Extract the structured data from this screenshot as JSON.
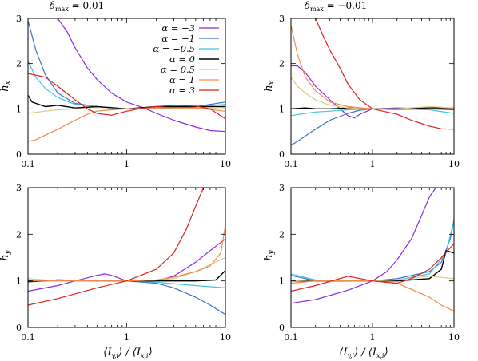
{
  "figure": {
    "xlabel": "⟨I_y,i⟩ / ⟨I_x,i⟩",
    "xticks": [
      "0.1",
      "1",
      "10"
    ],
    "series_names": [
      "α = −3",
      "α = −1",
      "α = −0.5",
      "α = 0",
      "α = 0.5",
      "α = 1",
      "α = 3"
    ],
    "series_colors": [
      "#8a2be2",
      "#3a6fd8",
      "#3ec6e0",
      "#000000",
      "#d8c98a",
      "#f08a50",
      "#e0201c"
    ]
  },
  "chart_data": [
    {
      "type": "line",
      "title": "δmax = 0.01",
      "xlabel": "",
      "ylabel": "hx",
      "x_scale": "log",
      "xlim": [
        0.1,
        10
      ],
      "ylim": [
        0,
        3
      ],
      "yticks": [
        "0",
        "1",
        "2",
        "3"
      ],
      "legend": "top-right",
      "series": [
        {
          "name": "α = −3",
          "x": [
            0.2,
            0.25,
            0.3,
            0.4,
            0.5,
            0.7,
            1,
            1.5,
            2,
            3,
            5,
            7,
            10
          ],
          "y": [
            3.0,
            2.7,
            2.35,
            1.9,
            1.65,
            1.35,
            1.15,
            1.02,
            0.9,
            0.75,
            0.6,
            0.52,
            0.5
          ]
        },
        {
          "name": "α = −1",
          "x": [
            0.1,
            0.12,
            0.15,
            0.2,
            0.3,
            0.5,
            1,
            2,
            5,
            10
          ],
          "y": [
            2.95,
            2.3,
            1.75,
            1.35,
            1.12,
            1.05,
            1.0,
            1.0,
            1.05,
            1.15
          ]
        },
        {
          "name": "α = −0.5",
          "x": [
            0.1,
            0.12,
            0.15,
            0.2,
            0.3,
            0.5,
            1,
            2,
            5,
            10
          ],
          "y": [
            2.05,
            1.7,
            1.45,
            1.25,
            1.1,
            1.05,
            1.0,
            1.02,
            1.05,
            1.1
          ]
        },
        {
          "name": "α = 0",
          "x": [
            0.1,
            0.11,
            0.15,
            0.2,
            0.3,
            0.5,
            1,
            2,
            5,
            10
          ],
          "y": [
            1.3,
            1.15,
            1.05,
            1.08,
            1.02,
            1.05,
            1.0,
            1.05,
            1.05,
            1.05
          ]
        },
        {
          "name": "α = 0.5",
          "x": [
            0.1,
            0.15,
            0.2,
            0.3,
            0.5,
            1,
            2,
            5,
            10
          ],
          "y": [
            0.9,
            0.95,
            0.98,
            1.0,
            1.0,
            1.0,
            1.02,
            1.02,
            1.0
          ]
        },
        {
          "name": "α = 1",
          "x": [
            0.1,
            0.12,
            0.15,
            0.2,
            0.3,
            0.4,
            0.5,
            0.7,
            1,
            2,
            5,
            10
          ],
          "y": [
            0.28,
            0.32,
            0.42,
            0.55,
            0.75,
            0.88,
            0.95,
            0.98,
            1.0,
            1.02,
            1.02,
            0.95
          ]
        },
        {
          "name": "α = 3",
          "x": [
            0.1,
            0.15,
            0.2,
            0.3,
            0.4,
            0.5,
            0.7,
            1,
            1.5,
            2,
            3,
            5,
            7,
            10
          ],
          "y": [
            1.78,
            1.7,
            1.5,
            1.2,
            1.0,
            0.9,
            0.86,
            0.95,
            1.02,
            1.05,
            1.08,
            1.06,
            1.0,
            0.78
          ]
        }
      ]
    },
    {
      "type": "line",
      "title": "δmax = −0.01",
      "xlabel": "",
      "ylabel": "hx",
      "x_scale": "log",
      "xlim": [
        0.1,
        10
      ],
      "ylim": [
        0,
        3
      ],
      "yticks": [
        "0",
        "1",
        "2",
        "3"
      ],
      "series": [
        {
          "name": "α = −3",
          "x": [
            0.1,
            0.12,
            0.15,
            0.2,
            0.3,
            0.4,
            0.5,
            0.6,
            0.7,
            1,
            2,
            5,
            10
          ],
          "y": [
            1.95,
            1.95,
            1.8,
            1.5,
            1.2,
            1.0,
            0.85,
            0.8,
            0.88,
            1.0,
            1.02,
            1.0,
            0.98
          ]
        },
        {
          "name": "α = −1",
          "x": [
            0.1,
            0.12,
            0.15,
            0.2,
            0.3,
            0.5,
            0.7,
            1,
            2,
            5,
            10
          ],
          "y": [
            0.2,
            0.28,
            0.4,
            0.55,
            0.75,
            0.9,
            0.97,
            1.0,
            1.0,
            1.0,
            1.0
          ]
        },
        {
          "name": "α = −0.5",
          "x": [
            0.1,
            0.15,
            0.2,
            0.3,
            0.5,
            1,
            2,
            5,
            10
          ],
          "y": [
            0.85,
            0.9,
            0.93,
            0.95,
            0.98,
            1.0,
            1.0,
            0.98,
            0.9
          ]
        },
        {
          "name": "α = 0",
          "x": [
            0.1,
            0.15,
            0.2,
            0.3,
            0.5,
            1,
            2,
            5,
            10
          ],
          "y": [
            1.0,
            1.02,
            1.0,
            1.0,
            1.02,
            1.0,
            1.0,
            1.02,
            1.02
          ]
        },
        {
          "name": "α = 0.5",
          "x": [
            0.1,
            0.12,
            0.15,
            0.2,
            0.3,
            0.5,
            1,
            2,
            5,
            10
          ],
          "y": [
            1.7,
            1.5,
            1.35,
            1.2,
            1.08,
            1.02,
            1.0,
            1.0,
            1.05,
            1.02
          ]
        },
        {
          "name": "α = 1",
          "x": [
            0.1,
            0.12,
            0.15,
            0.2,
            0.3,
            0.5,
            1,
            2,
            5,
            10
          ],
          "y": [
            2.85,
            2.2,
            1.7,
            1.4,
            1.15,
            1.05,
            1.0,
            0.98,
            1.0,
            1.0
          ]
        },
        {
          "name": "α = 3",
          "x": [
            0.2,
            0.25,
            0.3,
            0.4,
            0.5,
            0.7,
            1,
            1.5,
            2,
            3,
            5,
            7,
            10
          ],
          "y": [
            3.0,
            2.6,
            2.3,
            1.9,
            1.55,
            1.2,
            1.0,
            0.93,
            0.88,
            0.75,
            0.62,
            0.56,
            0.55
          ]
        }
      ]
    },
    {
      "type": "line",
      "title": "",
      "xlabel": "⟨I_y,i⟩ / ⟨I_x,i⟩",
      "ylabel": "hy",
      "x_scale": "log",
      "xlim": [
        0.1,
        10
      ],
      "ylim": [
        0,
        3
      ],
      "yticks": [
        "0",
        "1",
        "2",
        "3"
      ],
      "series": [
        {
          "name": "α = −3",
          "x": [
            0.1,
            0.2,
            0.3,
            0.5,
            0.6,
            0.7,
            1,
            1.5,
            2,
            3,
            5,
            7,
            10
          ],
          "y": [
            0.78,
            0.9,
            1.0,
            1.12,
            1.15,
            1.12,
            1.0,
            0.98,
            1.0,
            1.1,
            1.4,
            1.65,
            1.9
          ]
        },
        {
          "name": "α = −1",
          "x": [
            0.1,
            0.2,
            0.5,
            1,
            2,
            3,
            5,
            7,
            10
          ],
          "y": [
            1.0,
            1.0,
            1.0,
            1.0,
            0.95,
            0.85,
            0.65,
            0.48,
            0.28
          ]
        },
        {
          "name": "α = −0.5",
          "x": [
            0.1,
            0.2,
            0.5,
            1,
            2,
            5,
            10
          ],
          "y": [
            1.02,
            1.0,
            1.0,
            1.0,
            0.97,
            0.9,
            0.85
          ]
        },
        {
          "name": "α = 0",
          "x": [
            0.1,
            0.2,
            0.5,
            1,
            2,
            5,
            8,
            10
          ],
          "y": [
            0.98,
            1.02,
            1.0,
            1.0,
            1.0,
            1.0,
            1.02,
            1.22
          ]
        },
        {
          "name": "α = 0.5",
          "x": [
            0.1,
            0.2,
            0.5,
            1,
            2,
            3,
            5,
            7,
            10
          ],
          "y": [
            1.05,
            1.0,
            1.0,
            1.0,
            1.02,
            1.05,
            1.2,
            1.35,
            1.5
          ]
        },
        {
          "name": "α = 1",
          "x": [
            0.1,
            0.2,
            0.5,
            1,
            2,
            3,
            5,
            7,
            9,
            10
          ],
          "y": [
            1.0,
            1.0,
            1.0,
            1.0,
            1.02,
            1.08,
            1.2,
            1.32,
            1.6,
            2.2
          ]
        },
        {
          "name": "α = 3",
          "x": [
            0.1,
            0.2,
            0.5,
            1,
            2,
            3,
            4,
            5,
            6
          ],
          "y": [
            0.48,
            0.62,
            0.85,
            1.0,
            1.25,
            1.6,
            2.1,
            2.6,
            3.0
          ]
        }
      ]
    },
    {
      "type": "line",
      "title": "",
      "xlabel": "⟨I_y,i⟩ / ⟨I_x,i⟩",
      "ylabel": "hy",
      "x_scale": "log",
      "xlim": [
        0.1,
        10
      ],
      "ylim": [
        0,
        3
      ],
      "yticks": [
        "0",
        "1",
        "2",
        "3"
      ],
      "series": [
        {
          "name": "α = −3",
          "x": [
            0.1,
            0.2,
            0.5,
            1,
            1.5,
            2,
            3,
            4,
            5,
            6
          ],
          "y": [
            0.52,
            0.6,
            0.8,
            1.0,
            1.2,
            1.45,
            1.9,
            2.4,
            2.8,
            3.0
          ]
        },
        {
          "name": "α = −1",
          "x": [
            0.1,
            0.2,
            0.5,
            1,
            2,
            5,
            7,
            9,
            10
          ],
          "y": [
            1.12,
            1.0,
            1.0,
            1.0,
            1.05,
            1.2,
            1.4,
            1.9,
            2.3
          ]
        },
        {
          "name": "α = −0.5",
          "x": [
            0.1,
            0.2,
            0.5,
            1,
            2,
            5,
            8,
            10
          ],
          "y": [
            1.15,
            1.02,
            1.0,
            1.0,
            1.02,
            1.15,
            1.6,
            2.3
          ]
        },
        {
          "name": "α = 0",
          "x": [
            0.1,
            0.2,
            0.5,
            1,
            2,
            5,
            7,
            8,
            10
          ],
          "y": [
            1.0,
            1.0,
            1.0,
            1.0,
            1.0,
            1.05,
            1.25,
            1.65,
            1.6
          ]
        },
        {
          "name": "α = 0.5",
          "x": [
            0.1,
            0.2,
            0.5,
            1,
            2,
            5,
            10
          ],
          "y": [
            1.0,
            1.02,
            1.0,
            1.0,
            1.02,
            1.1,
            1.05
          ]
        },
        {
          "name": "α = 1",
          "x": [
            0.1,
            0.2,
            0.5,
            1,
            2,
            3,
            5,
            7,
            10
          ],
          "y": [
            0.95,
            1.0,
            1.0,
            1.0,
            0.95,
            0.82,
            0.65,
            0.48,
            0.35
          ]
        },
        {
          "name": "α = 3",
          "x": [
            0.1,
            0.2,
            0.5,
            1,
            2,
            3,
            5,
            7,
            10
          ],
          "y": [
            0.78,
            0.9,
            1.1,
            1.0,
            0.95,
            1.05,
            1.25,
            1.5,
            1.8
          ]
        }
      ]
    }
  ]
}
